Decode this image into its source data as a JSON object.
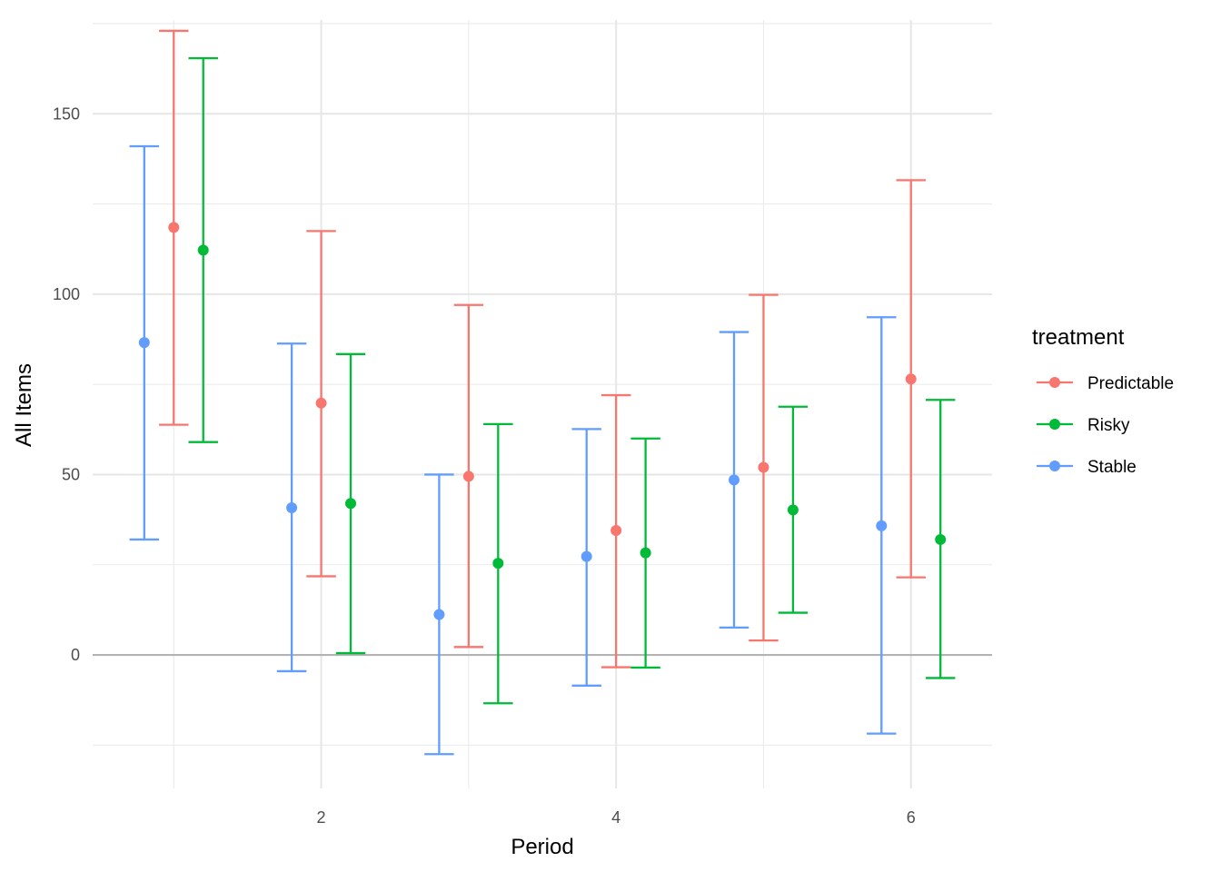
{
  "chart_data": {
    "type": "scatter",
    "subtype": "point-errorbar",
    "xlabel": "Period",
    "ylabel": "All Items",
    "xlim": [
      0.45,
      6.55
    ],
    "ylim": [
      -37,
      176
    ],
    "x_major_ticks": [
      2,
      4,
      6
    ],
    "x_minor_ticks": [
      1,
      3,
      5
    ],
    "y_major_ticks": [
      0,
      50,
      100,
      150
    ],
    "y_minor_ticks": [
      -25,
      25,
      75,
      125,
      175
    ],
    "grid": true,
    "zero_line": true,
    "legend": {
      "title": "treatment",
      "position": "right"
    },
    "colors": {
      "Predictable": "#F8766D",
      "Risky": "#00BA38",
      "Stable": "#619CFF"
    },
    "dodge": 0.2,
    "series": [
      {
        "name": "Predictable",
        "x": [
          1,
          2,
          3,
          4,
          5,
          6
        ],
        "mean": [
          118.5,
          69.8,
          49.5,
          34.5,
          52.0,
          76.5
        ],
        "lower": [
          63.8,
          21.8,
          2.2,
          -3.4,
          4.0,
          21.5
        ],
        "upper": [
          173.0,
          117.5,
          97.0,
          72.0,
          99.8,
          131.6
        ]
      },
      {
        "name": "Risky",
        "x": [
          1,
          2,
          3,
          4,
          5,
          6
        ],
        "mean": [
          112.2,
          42.0,
          25.4,
          28.3,
          40.2,
          32.0
        ],
        "lower": [
          59.0,
          0.5,
          -13.4,
          -3.5,
          11.7,
          -6.4
        ],
        "upper": [
          165.4,
          83.4,
          64.0,
          60.0,
          68.8,
          70.7
        ]
      },
      {
        "name": "Stable",
        "x": [
          1,
          2,
          3,
          4,
          5,
          6
        ],
        "mean": [
          86.6,
          40.8,
          11.2,
          27.3,
          48.5,
          35.8
        ],
        "lower": [
          32.0,
          -4.5,
          -27.5,
          -8.5,
          7.6,
          -21.8
        ],
        "upper": [
          141.0,
          86.3,
          50.0,
          62.6,
          89.5,
          93.6
        ]
      }
    ]
  }
}
